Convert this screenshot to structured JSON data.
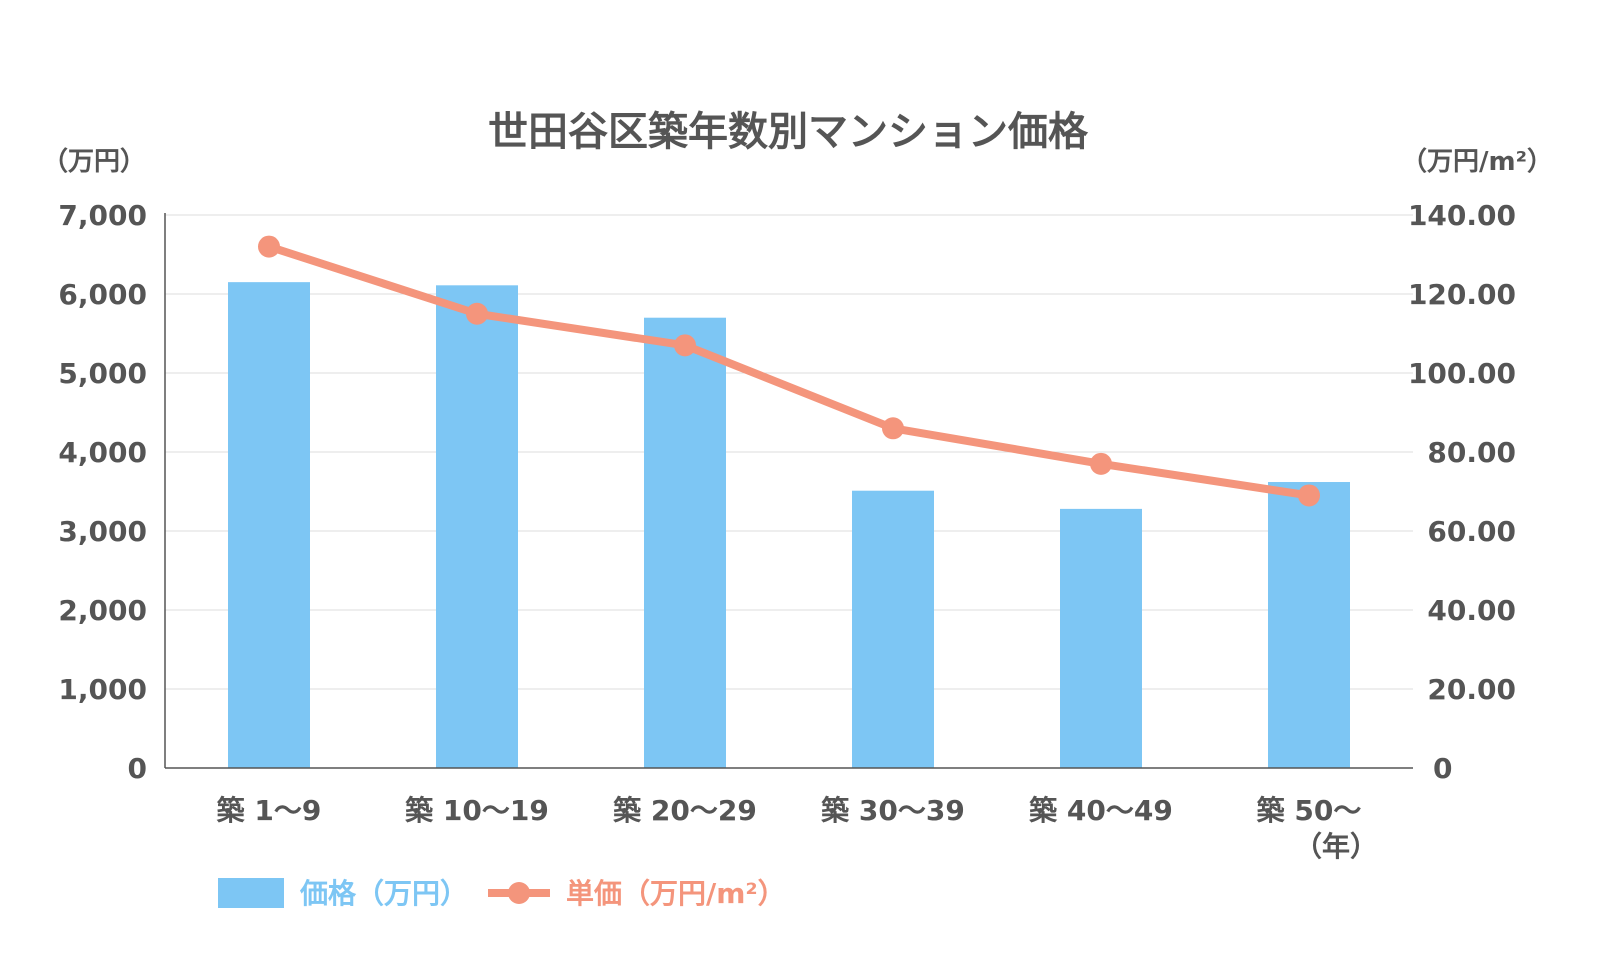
{
  "chart_data": {
    "type": "bar",
    "title": "世田谷区築年数別マンション価格",
    "y_left_unit": "（万円）",
    "y_right_unit": "（万円/m²）",
    "x_unit": "（年）",
    "categories": [
      "築 1〜9",
      "築 10〜19",
      "築 20〜29",
      "築 30〜39",
      "築 40〜49",
      "築 50〜"
    ],
    "series": [
      {
        "name": "価格（万円）",
        "type": "bar",
        "axis": "left",
        "color": "#7dc6f4",
        "values": [
          6150,
          6110,
          5700,
          3510,
          3280,
          3620
        ]
      },
      {
        "name": "単価（万円/m²）",
        "type": "line",
        "axis": "right",
        "color": "#f4957c",
        "values": [
          132,
          115,
          107,
          86,
          77,
          69
        ]
      }
    ],
    "y_left": {
      "ylim": [
        0,
        7000
      ],
      "ticks": [
        "0",
        "1,000",
        "2,000",
        "3,000",
        "4,000",
        "5,000",
        "6,000",
        "7,000"
      ]
    },
    "y_right": {
      "ylim": [
        0,
        140
      ],
      "ticks": [
        "0",
        "20.00",
        "40.00",
        "60.00",
        "80.00",
        "100.00",
        "120.00",
        "140.00"
      ]
    },
    "grid": true,
    "legend_position": "bottom-left"
  }
}
